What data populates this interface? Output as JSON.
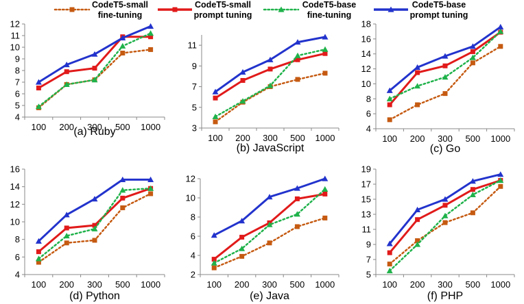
{
  "legend": [
    {
      "name": "CodeT5-small\nfine-tuning",
      "color": "#c55a11",
      "dash": "dot",
      "marker": "square"
    },
    {
      "name": "CodeT5-small\nprompt tuning",
      "color": "#e11a1a",
      "dash": "solid",
      "marker": "square"
    },
    {
      "name": "CodeT5-base\nfine-tuning",
      "color": "#1fb24a",
      "dash": "dot",
      "marker": "triangle"
    },
    {
      "name": "CodeT5-base\nprompt tuning",
      "color": "#2233cc",
      "dash": "solid",
      "marker": "triangle"
    }
  ],
  "chart_data": [
    {
      "type": "line",
      "title": "(a) Ruby",
      "categories": [
        "100",
        "200",
        "300",
        "500",
        "1000"
      ],
      "ylim": [
        4,
        12
      ],
      "yticks": [
        4,
        5,
        6,
        7,
        8,
        9,
        10,
        11,
        12
      ],
      "series": [
        {
          "name": "CodeT5-small fine-tuning",
          "values": [
            4.8,
            6.8,
            7.2,
            9.5,
            9.8
          ]
        },
        {
          "name": "CodeT5-small prompt tuning",
          "values": [
            6.5,
            7.9,
            8.2,
            10.9,
            10.9
          ]
        },
        {
          "name": "CodeT5-base fine-tuning",
          "values": [
            4.9,
            6.8,
            7.2,
            10.1,
            11.2
          ]
        },
        {
          "name": "CodeT5-base prompt tuning",
          "values": [
            7.0,
            8.5,
            9.4,
            10.8,
            11.8
          ]
        }
      ]
    },
    {
      "type": "line",
      "title": "(b) JavaScript",
      "categories": [
        "100",
        "200",
        "300",
        "500",
        "1000"
      ],
      "ylim": [
        3,
        12
      ],
      "yticks": [
        3,
        5,
        7,
        9,
        11
      ],
      "series": [
        {
          "name": "CodeT5-small fine-tuning",
          "values": [
            3.6,
            5.5,
            7.0,
            7.7,
            8.3
          ]
        },
        {
          "name": "CodeT5-small prompt tuning",
          "values": [
            5.9,
            7.6,
            8.7,
            9.6,
            10.2
          ]
        },
        {
          "name": "CodeT5-base fine-tuning",
          "values": [
            4.1,
            5.6,
            7.1,
            10.0,
            10.6
          ]
        },
        {
          "name": "CodeT5-base prompt tuning",
          "values": [
            6.5,
            8.4,
            9.6,
            11.3,
            11.8
          ]
        }
      ]
    },
    {
      "type": "line",
      "title": "(c) Go",
      "categories": [
        "100",
        "200",
        "300",
        "500",
        "1000"
      ],
      "ylim": [
        4,
        18
      ],
      "yticks": [
        4,
        6,
        8,
        10,
        12,
        14,
        16,
        18
      ],
      "series": [
        {
          "name": "CodeT5-small fine-tuning",
          "values": [
            5.2,
            7.2,
            8.7,
            12.8,
            15.0
          ]
        },
        {
          "name": "CodeT5-small prompt tuning",
          "values": [
            7.2,
            11.5,
            12.4,
            14.3,
            16.9
          ]
        },
        {
          "name": "CodeT5-base fine-tuning",
          "values": [
            8.0,
            9.7,
            10.9,
            13.5,
            17.0
          ]
        },
        {
          "name": "CodeT5-base prompt tuning",
          "values": [
            9.1,
            12.2,
            13.7,
            15.0,
            17.6
          ]
        }
      ]
    },
    {
      "type": "line",
      "title": "(d) Python",
      "categories": [
        "100",
        "200",
        "300",
        "500",
        "1000"
      ],
      "ylim": [
        4,
        16
      ],
      "yticks": [
        4,
        6,
        8,
        10,
        12,
        14,
        16
      ],
      "series": [
        {
          "name": "CodeT5-small fine-tuning",
          "values": [
            5.4,
            7.6,
            7.9,
            11.6,
            13.2
          ]
        },
        {
          "name": "CodeT5-small prompt tuning",
          "values": [
            6.6,
            9.3,
            9.6,
            12.7,
            13.8
          ]
        },
        {
          "name": "CodeT5-base fine-tuning",
          "values": [
            5.8,
            8.4,
            9.2,
            13.6,
            13.8
          ]
        },
        {
          "name": "CodeT5-base prompt tuning",
          "values": [
            7.8,
            10.8,
            12.6,
            14.8,
            14.8
          ]
        }
      ]
    },
    {
      "type": "line",
      "title": "(e) Java",
      "categories": [
        "100",
        "200",
        "300",
        "500",
        "1000"
      ],
      "ylim": [
        2,
        12
      ],
      "yticks": [
        2,
        4,
        6,
        8,
        10,
        12
      ],
      "series": [
        {
          "name": "CodeT5-small fine-tuning",
          "values": [
            2.7,
            3.9,
            5.3,
            7.0,
            7.9
          ]
        },
        {
          "name": "CodeT5-small prompt tuning",
          "values": [
            3.6,
            5.9,
            7.4,
            9.9,
            10.4
          ]
        },
        {
          "name": "CodeT5-base fine-tuning",
          "values": [
            3.2,
            4.7,
            7.2,
            8.3,
            10.9
          ]
        },
        {
          "name": "CodeT5-base prompt tuning",
          "values": [
            6.1,
            7.6,
            10.1,
            11.0,
            12.0
          ]
        }
      ]
    },
    {
      "type": "line",
      "title": "(f) PHP",
      "categories": [
        "100",
        "200",
        "300",
        "500",
        "1000"
      ],
      "ylim": [
        5,
        19
      ],
      "yticks": [
        5,
        7,
        9,
        11,
        13,
        15,
        17,
        19
      ],
      "series": [
        {
          "name": "CodeT5-small fine-tuning",
          "values": [
            6.4,
            9.5,
            11.9,
            13.2,
            16.7
          ]
        },
        {
          "name": "CodeT5-small prompt tuning",
          "values": [
            7.9,
            12.3,
            14.2,
            16.3,
            17.5
          ]
        },
        {
          "name": "CodeT5-base fine-tuning",
          "values": [
            5.5,
            9.0,
            12.8,
            15.6,
            17.5
          ]
        },
        {
          "name": "CodeT5-base prompt tuning",
          "values": [
            9.1,
            13.6,
            15.0,
            17.4,
            18.3
          ]
        }
      ]
    }
  ]
}
